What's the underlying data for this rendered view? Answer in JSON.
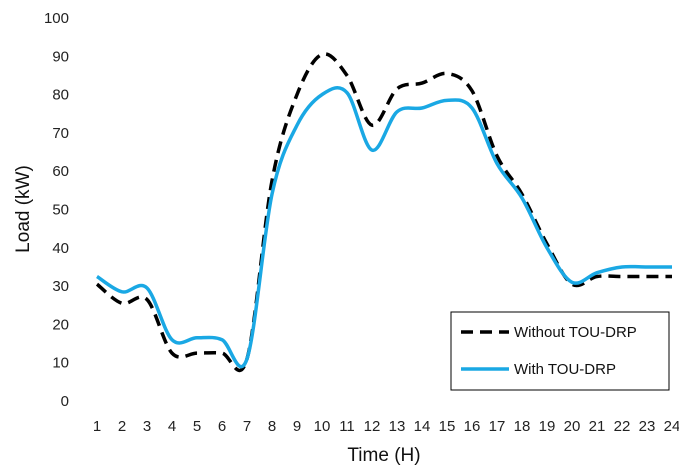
{
  "chart_data": {
    "type": "line",
    "xlabel": "Time (H)",
    "ylabel": "Load (kW)",
    "ylim": [
      0,
      100
    ],
    "yticks": [
      "0",
      "10",
      "20",
      "30",
      "40",
      "50",
      "60",
      "70",
      "80",
      "90",
      "100"
    ],
    "x": [
      "1",
      "2",
      "3",
      "4",
      "5",
      "6",
      "7",
      "8",
      "9",
      "10",
      "11",
      "12",
      "13",
      "14",
      "15",
      "16",
      "17",
      "18",
      "19",
      "20",
      "21",
      "22",
      "23",
      "24"
    ],
    "grid": false,
    "legend_position": "bottom-right",
    "series": [
      {
        "name": "Without TOU-DRP",
        "style": "dashed",
        "color": "#000000",
        "values": [
          30.5,
          25.5,
          26.5,
          12.5,
          12.5,
          12.5,
          11.0,
          57.5,
          80.0,
          90.5,
          85.0,
          72.0,
          81.5,
          83.0,
          85.5,
          81.0,
          64.0,
          54.0,
          41.0,
          30.5,
          32.5,
          32.5,
          32.5,
          32.5
        ]
      },
      {
        "name": "With TOU-DRP",
        "style": "solid",
        "color": "#1aa8e4",
        "values": [
          32.5,
          28.5,
          29.5,
          16.0,
          16.5,
          16.0,
          11.0,
          54.0,
          72.0,
          80.0,
          80.5,
          65.5,
          75.5,
          76.5,
          78.5,
          76.5,
          62.0,
          53.0,
          40.0,
          31.0,
          33.5,
          35.0,
          35.0,
          35.0
        ]
      }
    ]
  }
}
